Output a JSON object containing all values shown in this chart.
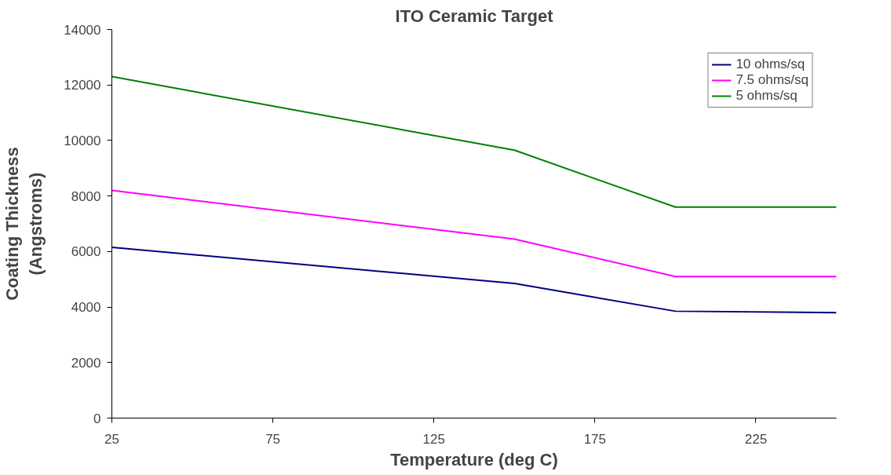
{
  "chart_data": {
    "type": "line",
    "title": "ITO Ceramic Target",
    "xlabel": "Temperature (deg C)",
    "ylabel": "Coating Thickness\n(Angstroms)",
    "x": [
      25,
      150,
      200,
      250
    ],
    "series": [
      {
        "name": "10 ohms/sq",
        "color": "#000080",
        "values": [
          6150,
          4850,
          3850,
          3800
        ]
      },
      {
        "name": "7.5 ohms/sq",
        "color": "#ff00ff",
        "values": [
          8200,
          6450,
          5100,
          5100
        ]
      },
      {
        "name": "5 ohms/sq",
        "color": "#008000",
        "values": [
          12300,
          9650,
          7600,
          7600
        ]
      }
    ],
    "xlim": [
      25,
      250
    ],
    "xticks": [
      25,
      75,
      125,
      175,
      225
    ],
    "ylim": [
      0,
      14000
    ],
    "yticks": [
      0,
      2000,
      4000,
      6000,
      8000,
      10000,
      12000,
      14000
    ],
    "grid": false,
    "legend": "top right"
  }
}
